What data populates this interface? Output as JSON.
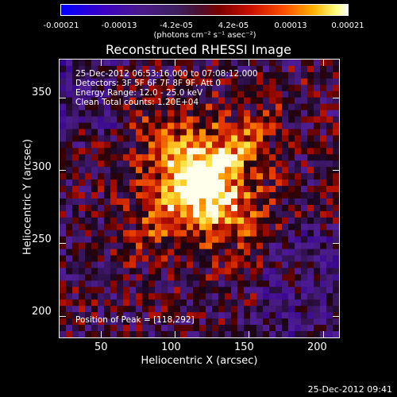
{
  "colorbar": {
    "ticks": [
      "-0.00021",
      "-0.00013",
      "-4.2e-05",
      "4.2e-05",
      "0.00013",
      "0.00021"
    ],
    "units": "(photons cm⁻² s⁻¹ asec⁻²)"
  },
  "chart_data": {
    "type": "heatmap",
    "title": "Reconstructed RHESSI Image",
    "xlabel": "Heliocentric X (arcsec)",
    "ylabel": "Heliocentric Y (arcsec)",
    "xlim": [
      22,
      211
    ],
    "ylim": [
      185,
      376
    ],
    "xticks": [
      "50",
      "100",
      "150",
      "200"
    ],
    "yticks": [
      "350",
      "300",
      "250",
      "200"
    ],
    "zlim": [
      -0.00021,
      0.00021
    ],
    "peak": [
      118,
      292
    ],
    "annotations": [
      "25-Dec-2012 06:53:16.000 to 07:08:12.000",
      "Detectors: 3F 5F 6F 7F 8F 9F, Att 0",
      "Energy Range: 12.0 - 25.0 keV",
      "Clean     Total counts: 1.20E+04"
    ],
    "peak_label": "Position of Peak = [118,292]",
    "colors": [
      "#0000ff",
      "#4b1a8a",
      "#000000",
      "#c81000",
      "#ff5000",
      "#ffb000",
      "#ffffff"
    ]
  },
  "timestamp": "25-Dec-2012 09:41"
}
